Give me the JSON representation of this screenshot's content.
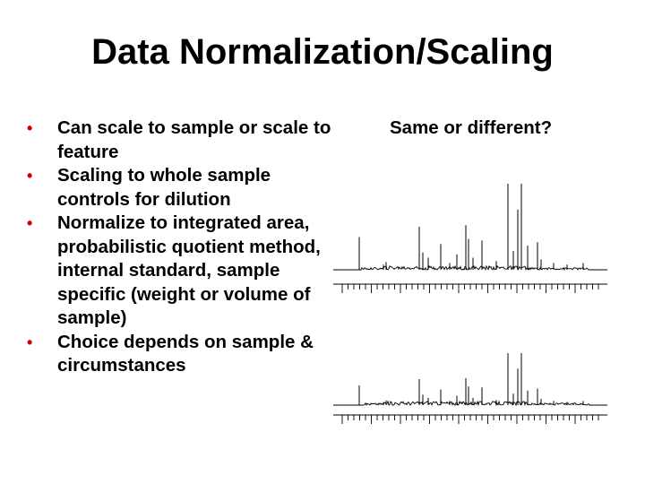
{
  "slide": {
    "title": "Data Normalization/Scaling",
    "bullets": [
      "Can scale to sample or scale to feature",
      "Scaling to whole sample controls for dilution",
      "Normalize to integrated area, probabilistic quotient method, internal standard, sample specific (weight or volume of sample)",
      "Choice depends on sample & circumstances"
    ],
    "bullet_symbol": "•",
    "right_heading": "Same or different?"
  },
  "colors": {
    "text": "#000000",
    "bullet": "#cc0000",
    "background": "#ffffff"
  }
}
